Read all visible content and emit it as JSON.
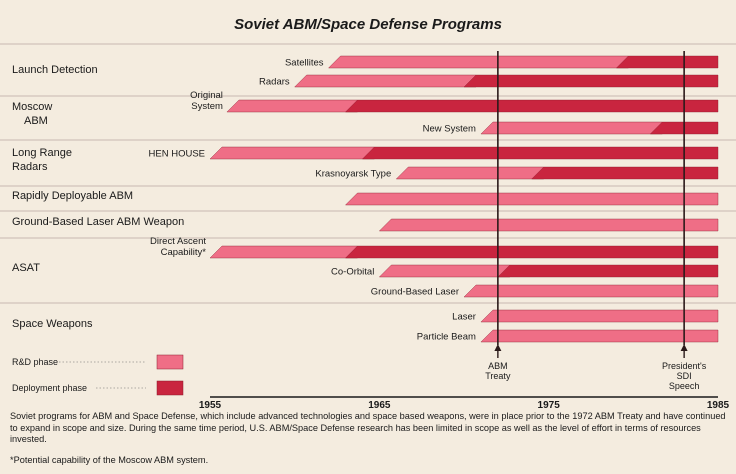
{
  "chart_data": {
    "type": "timeline-bar",
    "title": "Soviet ABM/Space Defense Programs",
    "xlim": [
      1955,
      1985
    ],
    "x_ticks": [
      "1955",
      "1965",
      "1975",
      "1985"
    ],
    "colors": {
      "rd": "#ef6e86",
      "deploy": "#c9253f",
      "row_line": "#b9a9a2",
      "event_line": "#2b1a1a"
    },
    "categories": [
      {
        "name": "Launch Detection",
        "programs": [
          {
            "label": "Satellites",
            "rd_start": 1962,
            "deploy_start": 1979,
            "end": 1985
          },
          {
            "label": "Radars",
            "rd_start": 1960,
            "deploy_start": 1970,
            "end": 1985
          }
        ]
      },
      {
        "name": "Moscow ABM",
        "programs": [
          {
            "label": "Original System",
            "rd_start": 1956,
            "deploy_start": 1963,
            "end": 1985
          },
          {
            "label": "New System",
            "rd_start": 1971,
            "deploy_start": 1981,
            "end": 1985
          }
        ]
      },
      {
        "name": "Long Range Radars",
        "programs": [
          {
            "label": "HEN HOUSE",
            "rd_start": 1955,
            "deploy_start": 1964,
            "end": 1985
          },
          {
            "label": "Krasnoyarsk Type",
            "rd_start": 1966,
            "deploy_start": 1974,
            "end": 1985
          }
        ]
      },
      {
        "name": "Rapidly Deployable ABM",
        "programs": [
          {
            "label": "",
            "rd_start": 1963,
            "deploy_start": null,
            "end": 1985
          }
        ]
      },
      {
        "name": "Ground-Based Laser ABM Weapon",
        "programs": [
          {
            "label": "",
            "rd_start": 1965,
            "deploy_start": null,
            "end": 1985
          }
        ]
      },
      {
        "name": "ASAT",
        "programs": [
          {
            "label": "Direct Ascent Capability*",
            "rd_start": 1955,
            "deploy_start": 1963,
            "end": 1985
          },
          {
            "label": "Co-Orbital",
            "rd_start": 1965,
            "deploy_start": 1972,
            "end": 1985
          },
          {
            "label": "Ground-Based Laser",
            "rd_start": 1970,
            "deploy_start": null,
            "end": 1985
          }
        ]
      },
      {
        "name": "Space Weapons",
        "programs": [
          {
            "label": "Laser",
            "rd_start": 1971,
            "deploy_start": null,
            "end": 1985
          },
          {
            "label": "Particle Beam",
            "rd_start": 1971,
            "deploy_start": null,
            "end": 1985
          }
        ]
      }
    ],
    "events": [
      {
        "year": 1972,
        "label_lines": [
          "ABM",
          "Treaty"
        ]
      },
      {
        "year": 1983,
        "label_lines": [
          "President's",
          "SDI",
          "Speech"
        ]
      }
    ],
    "legend": [
      {
        "key": "rd",
        "label": "R&D phase"
      },
      {
        "key": "deploy",
        "label": "Deployment phase"
      }
    ]
  },
  "caption": "Soviet programs for ABM and Space Defense, which include advanced technologies and space based weapons, were in place prior to the 1972 ABM Treaty and have continued to expand in scope and size. During the same time period, U.S. ABM/Space Defense research has been limited in scope as well as the level of effort in terms of resources invested.",
  "footnote": "*Potential capability of the Moscow ABM system."
}
